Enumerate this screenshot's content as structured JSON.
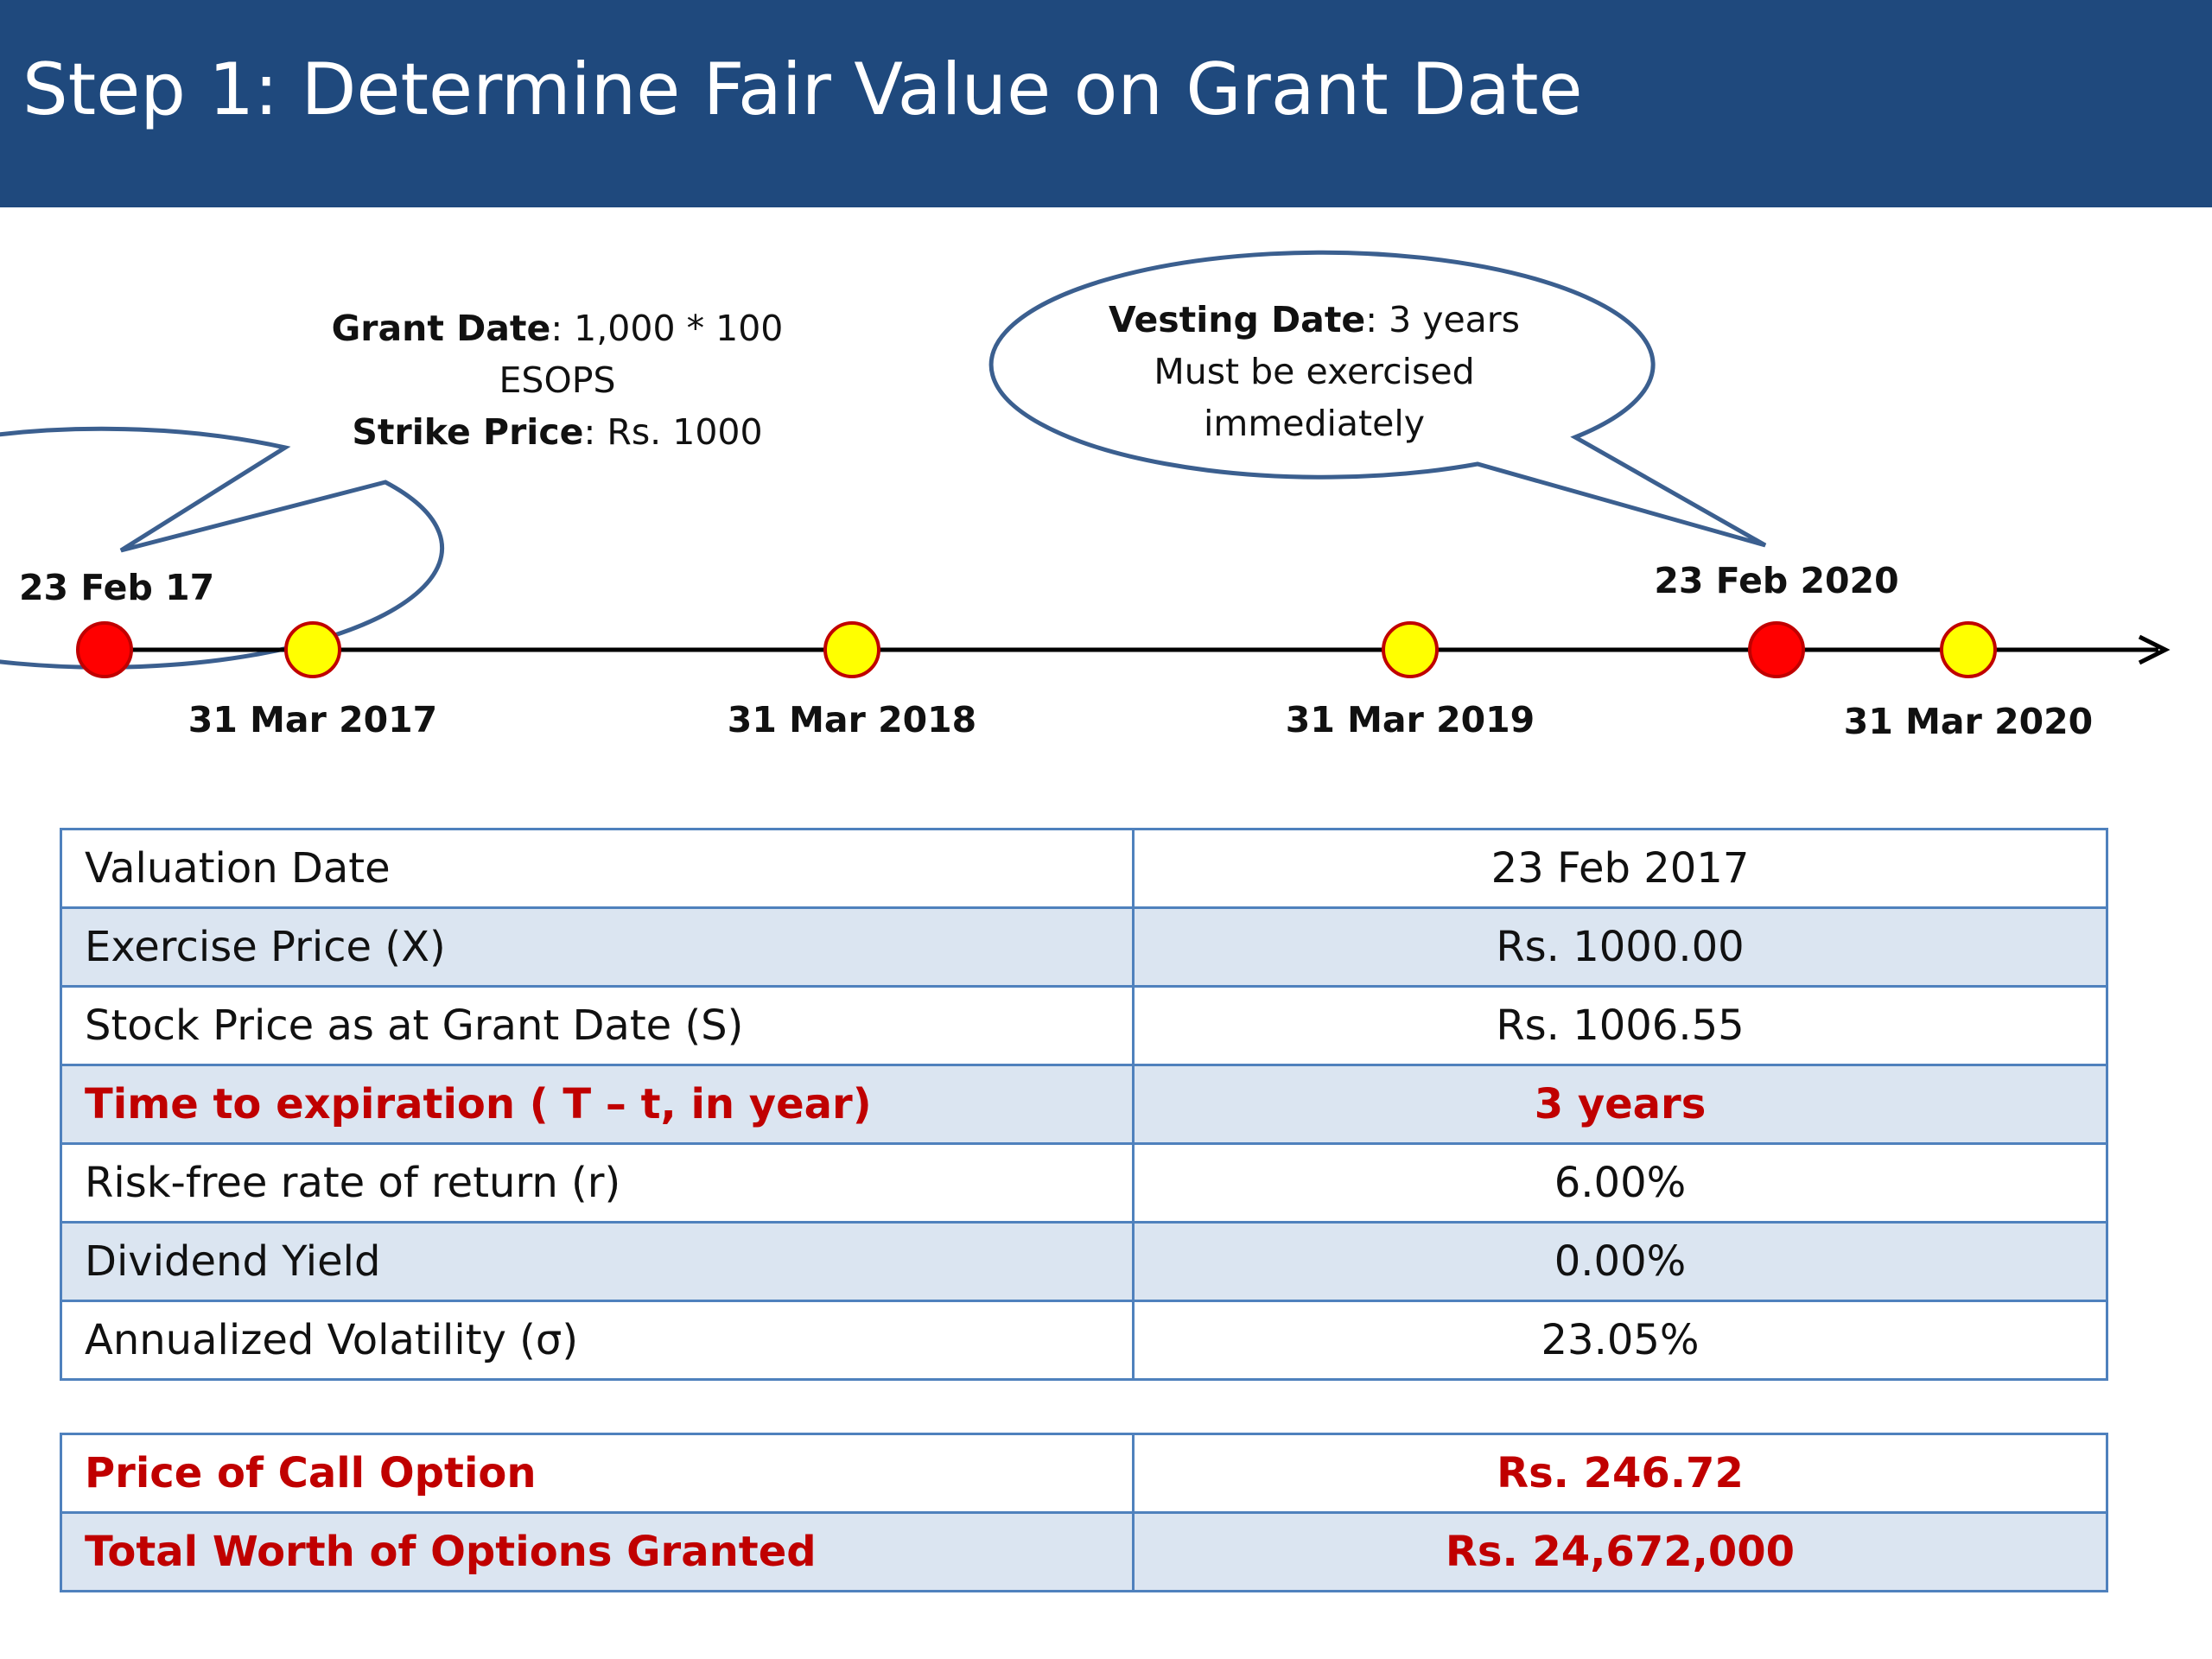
{
  "title": "Step 1: Determine Fair Value on Grant Date",
  "bubbles": {
    "grant": {
      "line1_bold": "Grant Date",
      "line1_rest": ": 1,000 * 100",
      "line2": "ESOPS",
      "line3_bold": "Strike Price",
      "line3_rest": ": Rs. 1000"
    },
    "vesting": {
      "line1_bold": "Vesting Date",
      "line1_rest": ": 3 years",
      "line2": "Must be exercised",
      "line3": "immediately"
    }
  },
  "timeline": {
    "above_labels": {
      "start": "23 Feb 17",
      "vesting": "23 Feb 2020"
    },
    "below_labels": [
      "31 Mar 2017",
      "31 Mar 2018",
      "31 Mar 2019",
      "31 Mar 2020"
    ],
    "colors": {
      "event": "#ff0000",
      "period_end": "#ffff00",
      "line": "#000000"
    }
  },
  "parameters": [
    {
      "label": "Valuation Date",
      "value": "23 Feb 2017"
    },
    {
      "label": "Exercise Price (X)",
      "value": "Rs. 1000.00"
    },
    {
      "label": "Stock Price as at Grant Date (S)",
      "value": "Rs. 1006.55"
    },
    {
      "label": "Time to expiration ( T – t, in year)",
      "value": "3 years"
    },
    {
      "label": "Risk-free rate of return (r)",
      "value": "6.00%"
    },
    {
      "label": "Dividend Yield",
      "value": "0.00%"
    },
    {
      "label": "Annualized Volatility (σ)",
      "value": "23.05%"
    }
  ],
  "results": [
    {
      "label": "Price of Call Option",
      "value": "Rs. 246.72"
    },
    {
      "label": "Total Worth of Options Granted",
      "value": "Rs. 24,672,000"
    }
  ],
  "colors": {
    "header": "#1f497d",
    "table_border": "#4f81bd",
    "alt_row": "#dbe5f1",
    "highlight": "#c00000"
  }
}
